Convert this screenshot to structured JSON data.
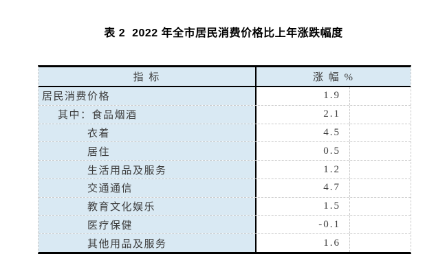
{
  "title": "表 2  2022 年全市居民消费价格比上年涨跌幅度",
  "table": {
    "columns": {
      "indicator": "指 标",
      "change_pct": "涨 幅 %"
    },
    "rows": [
      {
        "label": "居民消费价格",
        "value": "1.9"
      },
      {
        "label": "其中：食品烟酒",
        "value": "2.1"
      },
      {
        "label": "衣着",
        "value": "4.5"
      },
      {
        "label": "居住",
        "value": "0.5"
      },
      {
        "label": "生活用品及服务",
        "value": "1.2"
      },
      {
        "label": "交通通信",
        "value": "4.7"
      },
      {
        "label": "教育文化娱乐",
        "value": "1.5"
      },
      {
        "label": "医疗保健",
        "value": "-0.1"
      },
      {
        "label": "其他用品及服务",
        "value": "1.6"
      }
    ],
    "colors": {
      "header_bg": "#d9e9f3",
      "label_col_bg": "#d9e9f3",
      "grid_dashed": "#c9c9c9",
      "border": "#000000",
      "text": "#3d3d3d"
    }
  }
}
